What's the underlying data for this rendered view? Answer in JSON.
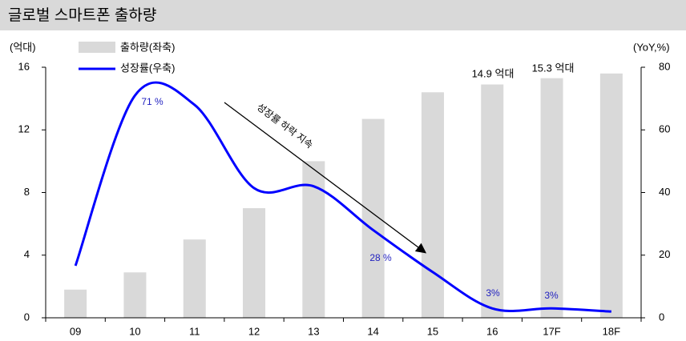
{
  "chart_data": {
    "type": "bar_line",
    "title": "글로벌 스마트폰 출하량",
    "y_label": "(억대)",
    "y2_label": "(YoY,%)",
    "categories": [
      "09",
      "10",
      "11",
      "12",
      "13",
      "14",
      "15",
      "16",
      "17F",
      "18F"
    ],
    "series": [
      {
        "name": "출하량(좌축)",
        "type": "bar",
        "color": "#d9d9d9",
        "values": [
          1.8,
          2.9,
          5.0,
          7.0,
          10.0,
          12.7,
          14.4,
          14.9,
          15.3,
          15.6
        ]
      },
      {
        "name": "성장률(우축)",
        "type": "line",
        "axis": "y2",
        "color": "#0000ff",
        "values": [
          16.6,
          71,
          68,
          41.4,
          42,
          28,
          14.6,
          3,
          3,
          2
        ]
      }
    ],
    "ylim": [
      0,
      16
    ],
    "yticks": [
      0,
      4,
      8,
      12,
      16
    ],
    "y2lim": [
      0,
      80
    ],
    "y2ticks": [
      0,
      20,
      40,
      60,
      80
    ],
    "annotations": [
      "14.9 억대",
      "15.3 억대",
      "71 %",
      "28 %",
      "3%",
      "3%",
      "성장률 하락 지속"
    ]
  }
}
